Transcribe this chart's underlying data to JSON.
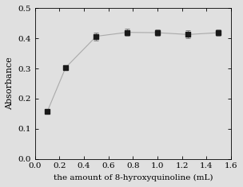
{
  "x": [
    0.1,
    0.25,
    0.5,
    0.75,
    1.0,
    1.25,
    1.5
  ],
  "y": [
    0.157,
    0.303,
    0.407,
    0.42,
    0.419,
    0.413,
    0.419
  ],
  "yerr": [
    0.004,
    0.008,
    0.013,
    0.012,
    0.011,
    0.013,
    0.011
  ],
  "xlabel": "the amount of 8-hyroxyquinoline (mL)",
  "ylabel": "Absorbance",
  "xlim": [
    0.0,
    1.6
  ],
  "ylim": [
    0.0,
    0.5
  ],
  "xticks": [
    0.0,
    0.2,
    0.4,
    0.6,
    0.8,
    1.0,
    1.2,
    1.4,
    1.6
  ],
  "yticks": [
    0.0,
    0.1,
    0.2,
    0.3,
    0.4,
    0.5
  ],
  "line_color": "#aaaaaa",
  "marker_color": "#1a1a1a",
  "ecolor": "#888888",
  "bg_color": "#e0e0e0",
  "marker": "s",
  "markersize": 4,
  "linewidth": 0.8,
  "capsize": 2.5,
  "xlabel_fontsize": 7.5,
  "ylabel_fontsize": 8,
  "tick_fontsize": 7.5
}
